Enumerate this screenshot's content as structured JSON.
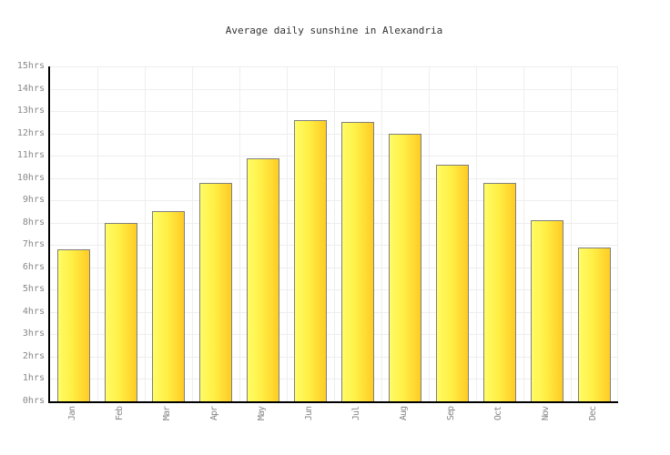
{
  "chart_data": {
    "type": "bar",
    "title": "Average daily sunshine in Alexandria",
    "categories": [
      "Jan",
      "Feb",
      "Mar",
      "Apr",
      "May",
      "Jun",
      "Jul",
      "Aug",
      "Sep",
      "Oct",
      "Nov",
      "Dec"
    ],
    "values": [
      6.8,
      8.0,
      8.5,
      9.8,
      10.9,
      12.6,
      12.5,
      12.0,
      10.6,
      9.8,
      8.1,
      6.9
    ],
    "unit": "hrs",
    "xlabel": "",
    "ylabel": "",
    "ylim": [
      0,
      15
    ],
    "ytick_step": 1,
    "ytick_labels": [
      "0hrs",
      "1hrs",
      "2hrs",
      "3hrs",
      "4hrs",
      "5hrs",
      "6hrs",
      "7hrs",
      "8hrs",
      "9hrs",
      "10hrs",
      "11hrs",
      "12hrs",
      "13hrs",
      "14hrs",
      "15hrs"
    ],
    "grid": true,
    "legend": "none",
    "colors": {
      "bar_gradient_start": "#FFFC66",
      "bar_gradient_end": "#FFCC22",
      "bar_border": "#7F7F7F",
      "gridline": "#EEEEEE",
      "axis_line": "#000000",
      "tick_label": "#888888",
      "title_text": "#333333",
      "background": "#FFFFFF"
    }
  }
}
